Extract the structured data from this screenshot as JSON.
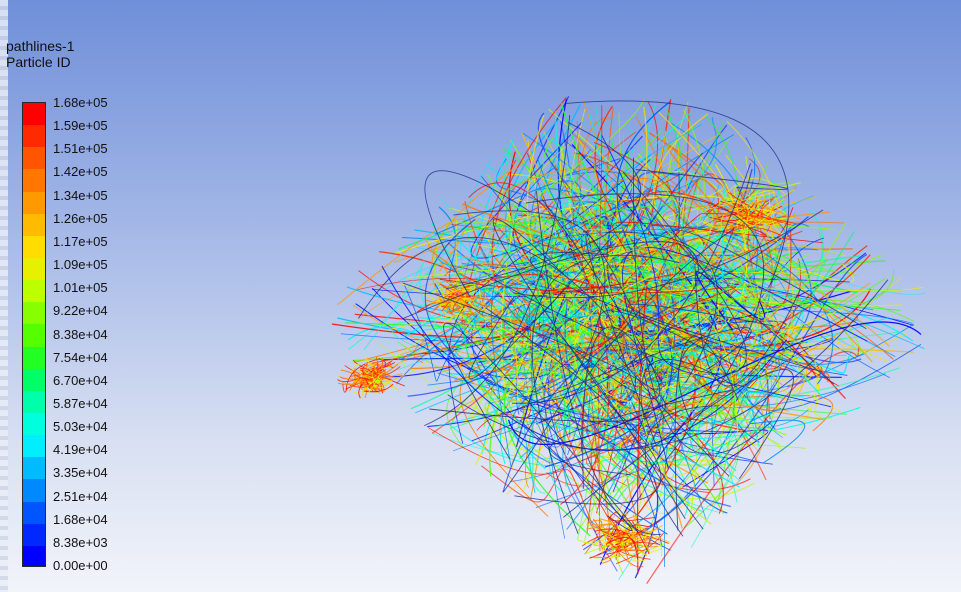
{
  "legend": {
    "title": "pathlines-1",
    "subtitle": "Particle ID",
    "labels": [
      "1.68e+05",
      "1.59e+05",
      "1.51e+05",
      "1.42e+05",
      "1.34e+05",
      "1.26e+05",
      "1.17e+05",
      "1.09e+05",
      "1.01e+05",
      "9.22e+04",
      "8.38e+04",
      "7.54e+04",
      "6.70e+04",
      "5.87e+04",
      "5.03e+04",
      "4.19e+04",
      "3.35e+04",
      "2.51e+04",
      "1.68e+04",
      "8.38e+03",
      "0.00e+00"
    ],
    "colors": [
      "#ff0000",
      "#ff2a00",
      "#ff5500",
      "#ff7700",
      "#ff9900",
      "#ffbb00",
      "#ffdd00",
      "#e6f000",
      "#bbff00",
      "#88ff00",
      "#55ff00",
      "#22ff22",
      "#00ff66",
      "#00ffaa",
      "#00ffdd",
      "#00eeff",
      "#00bbff",
      "#0088ff",
      "#0055ff",
      "#0028ff",
      "#0000ff"
    ]
  },
  "scene": {
    "background_top": "#6f8fd9",
    "background_bottom": "#f2f4fa"
  }
}
